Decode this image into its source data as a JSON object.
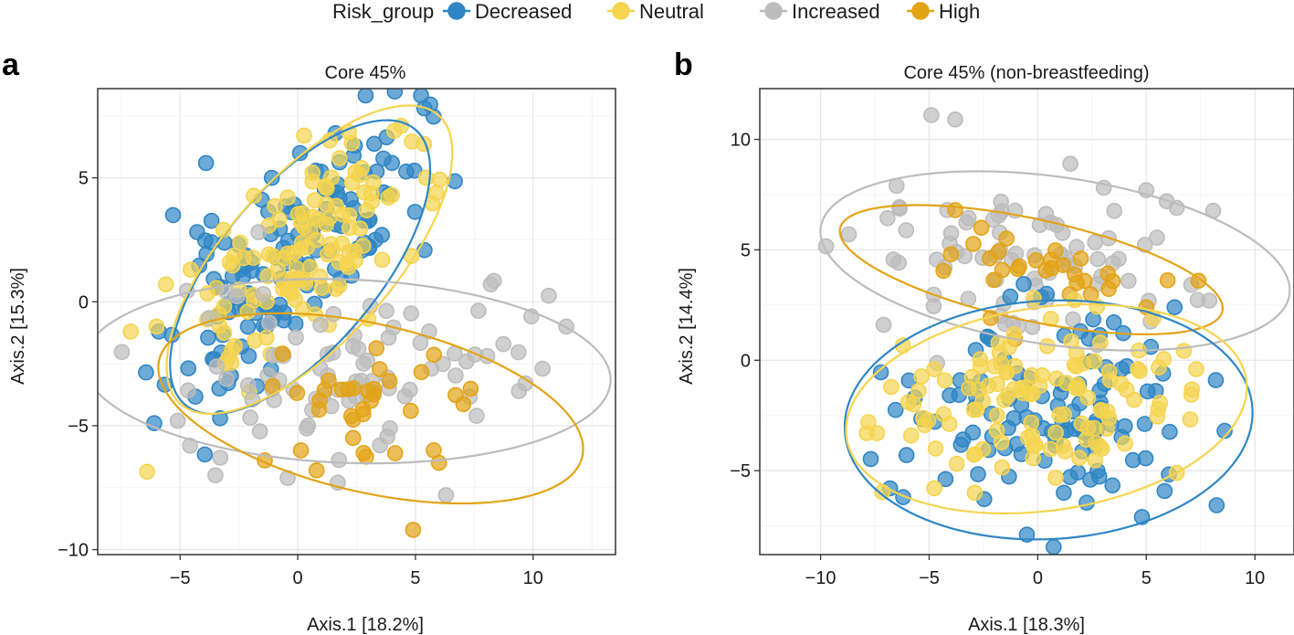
{
  "legend": {
    "title": "Risk_group",
    "items": [
      {
        "label": "Decreased",
        "color": "#2f86c4"
      },
      {
        "label": "Neutral",
        "color": "#f5d44e"
      },
      {
        "label": "Increased",
        "color": "#bcbcbc"
      },
      {
        "label": "High",
        "color": "#e3a317"
      }
    ]
  },
  "chart_data": [
    {
      "type": "scatter",
      "panel_label": "a",
      "title": "Core 45%",
      "xlabel": "Axis.1 [18.2%]",
      "ylabel": "Axis.2 [15.3%]",
      "xlim": [
        -8.5,
        13.5
      ],
      "ylim": [
        -10.2,
        8.6
      ],
      "xticks": [
        -5,
        0,
        5,
        10
      ],
      "yticks": [
        -10,
        -5,
        0,
        5
      ],
      "xtick_labels": [
        "−5",
        "0",
        "5",
        "10"
      ],
      "ytick_labels": [
        "−10",
        "−5",
        "0",
        "5"
      ],
      "grid": true,
      "series": [
        {
          "name": "Decreased",
          "seed": 11,
          "n": 130,
          "center": [
            -0.3,
            1.6
          ],
          "sd": [
            2.6,
            2.6
          ],
          "rho": 0.72,
          "points": [
            [
              -5.3,
              3.5
            ],
            [
              -3.9,
              5.6
            ],
            [
              4.0,
              5.6
            ],
            [
              3.3,
              2.5
            ],
            [
              -5.9,
              -1.2
            ],
            [
              -6.1,
              -4.9
            ],
            [
              -3.3,
              -4.7
            ],
            [
              1.6,
              6.8
            ],
            [
              0.1,
              6.0
            ],
            [
              -1.1,
              5.0
            ]
          ],
          "ellipse": {
            "cx": 0.1,
            "cy": 1.4,
            "rx": 7.4,
            "ry": 3.3,
            "angle": 48
          }
        },
        {
          "name": "Neutral",
          "seed": 23,
          "n": 125,
          "center": [
            0.3,
            2.0
          ],
          "sd": [
            2.6,
            2.6
          ],
          "rho": 0.7,
          "points": [
            [
              -6.0,
              -1.0
            ],
            [
              -7.1,
              -1.2
            ],
            [
              2.3,
              6.4
            ],
            [
              4.0,
              4.3
            ],
            [
              -5.6,
              0.7
            ]
          ],
          "ellipse": {
            "cx": 0.5,
            "cy": 1.7,
            "rx": 8.0,
            "ry": 3.4,
            "angle": 46
          }
        },
        {
          "name": "Increased",
          "seed": 37,
          "n": 85,
          "center": [
            2.8,
            -2.4
          ],
          "sd": [
            3.8,
            1.8
          ],
          "rho": 0.15,
          "points": [
            [
              10.4,
              -2.7
            ],
            [
              8.2,
              0.7
            ],
            [
              6.3,
              -7.8
            ],
            [
              -3.5,
              -7.0
            ],
            [
              1.7,
              -7.3
            ],
            [
              9.4,
              -3.6
            ],
            [
              7.6,
              -4.6
            ]
          ],
          "ellipse": {
            "cx": 2.1,
            "cy": -2.8,
            "rx": 11.2,
            "ry": 3.7,
            "angle": -2
          }
        },
        {
          "name": "High",
          "seed": 41,
          "n": 30,
          "center": [
            3.6,
            -4.2
          ],
          "sd": [
            2.2,
            1.4
          ],
          "rho": 0.0,
          "points": [
            [
              4.9,
              -9.2
            ],
            [
              -1.4,
              -6.4
            ],
            [
              0.8,
              -6.8
            ],
            [
              6.0,
              -6.5
            ],
            [
              2.8,
              -6.1
            ],
            [
              3.9,
              -3.2
            ],
            [
              4.8,
              -4.4
            ]
          ],
          "ellipse": {
            "cx": 3.1,
            "cy": -4.3,
            "rx": 9.2,
            "ry": 3.4,
            "angle": -12
          }
        }
      ]
    },
    {
      "type": "scatter",
      "panel_label": "b",
      "title": "Core 45% (non-breastfeeding)",
      "xlabel": "Axis.1 [18.3%]",
      "ylabel": "Axis.2 [14.4%]",
      "xlim": [
        -12.8,
        11.8
      ],
      "ylim": [
        -8.8,
        12.3
      ],
      "xticks": [
        -10,
        -5,
        0,
        5,
        10
      ],
      "yticks": [
        -5,
        0,
        5,
        10
      ],
      "xtick_labels": [
        "−10",
        "−5",
        "0",
        "5",
        "10"
      ],
      "ytick_labels": [
        "−5",
        "0",
        "5",
        "10"
      ],
      "grid": true,
      "series": [
        {
          "name": "Increased",
          "seed": 53,
          "n": 75,
          "center": [
            -1.0,
            4.3
          ],
          "sd": [
            4.0,
            1.6
          ],
          "rho": -0.1,
          "points": [
            [
              -4.9,
              11.1
            ],
            [
              -3.8,
              10.9
            ],
            [
              1.5,
              8.9
            ],
            [
              5.0,
              7.7
            ],
            [
              -6.5,
              7.9
            ],
            [
              6.4,
              6.9
            ],
            [
              -8.7,
              5.7
            ],
            [
              7.9,
              2.7
            ]
          ],
          "ellipse": {
            "cx": 0.8,
            "cy": 4.5,
            "rx": 10.9,
            "ry": 3.8,
            "angle": -8
          }
        },
        {
          "name": "High",
          "seed": 61,
          "n": 26,
          "center": [
            0.0,
            4.1
          ],
          "sd": [
            3.2,
            1.0
          ],
          "rho": -0.3,
          "points": [
            [
              -3.8,
              6.8
            ],
            [
              -2.6,
              6.0
            ],
            [
              5.0,
              2.4
            ],
            [
              7.4,
              3.6
            ],
            [
              1.8,
              3.5
            ],
            [
              -4.0,
              4.8
            ]
          ],
          "ellipse": {
            "cx": -0.3,
            "cy": 4.1,
            "rx": 9.0,
            "ry": 2.3,
            "angle": -12
          }
        },
        {
          "name": "Decreased",
          "seed": 71,
          "n": 110,
          "center": [
            0.3,
            -2.2
          ],
          "sd": [
            3.6,
            2.3
          ],
          "rho": 0.1,
          "points": [
            [
              -0.5,
              -7.9
            ],
            [
              4.8,
              -7.1
            ],
            [
              -6.2,
              -6.2
            ],
            [
              -6.8,
              -5.8
            ],
            [
              8.2,
              -0.9
            ],
            [
              6.3,
              2.4
            ],
            [
              1.2,
              -6.0
            ]
          ],
          "ellipse": {
            "cx": 0.5,
            "cy": -2.7,
            "rx": 9.4,
            "ry": 5.4,
            "angle": 3
          }
        },
        {
          "name": "Neutral",
          "seed": 83,
          "n": 120,
          "center": [
            -0.3,
            -1.7
          ],
          "sd": [
            3.6,
            2.0
          ],
          "rho": 0.15,
          "points": [
            [
              -7.4,
              -3.3
            ],
            [
              -7.8,
              -2.8
            ],
            [
              6.4,
              -5.1
            ],
            [
              7.3,
              -0.4
            ],
            [
              -2.9,
              -6.0
            ]
          ],
          "ellipse": {
            "cx": 0.4,
            "cy": -2.2,
            "rx": 9.3,
            "ry": 4.6,
            "angle": 8
          }
        }
      ]
    }
  ]
}
